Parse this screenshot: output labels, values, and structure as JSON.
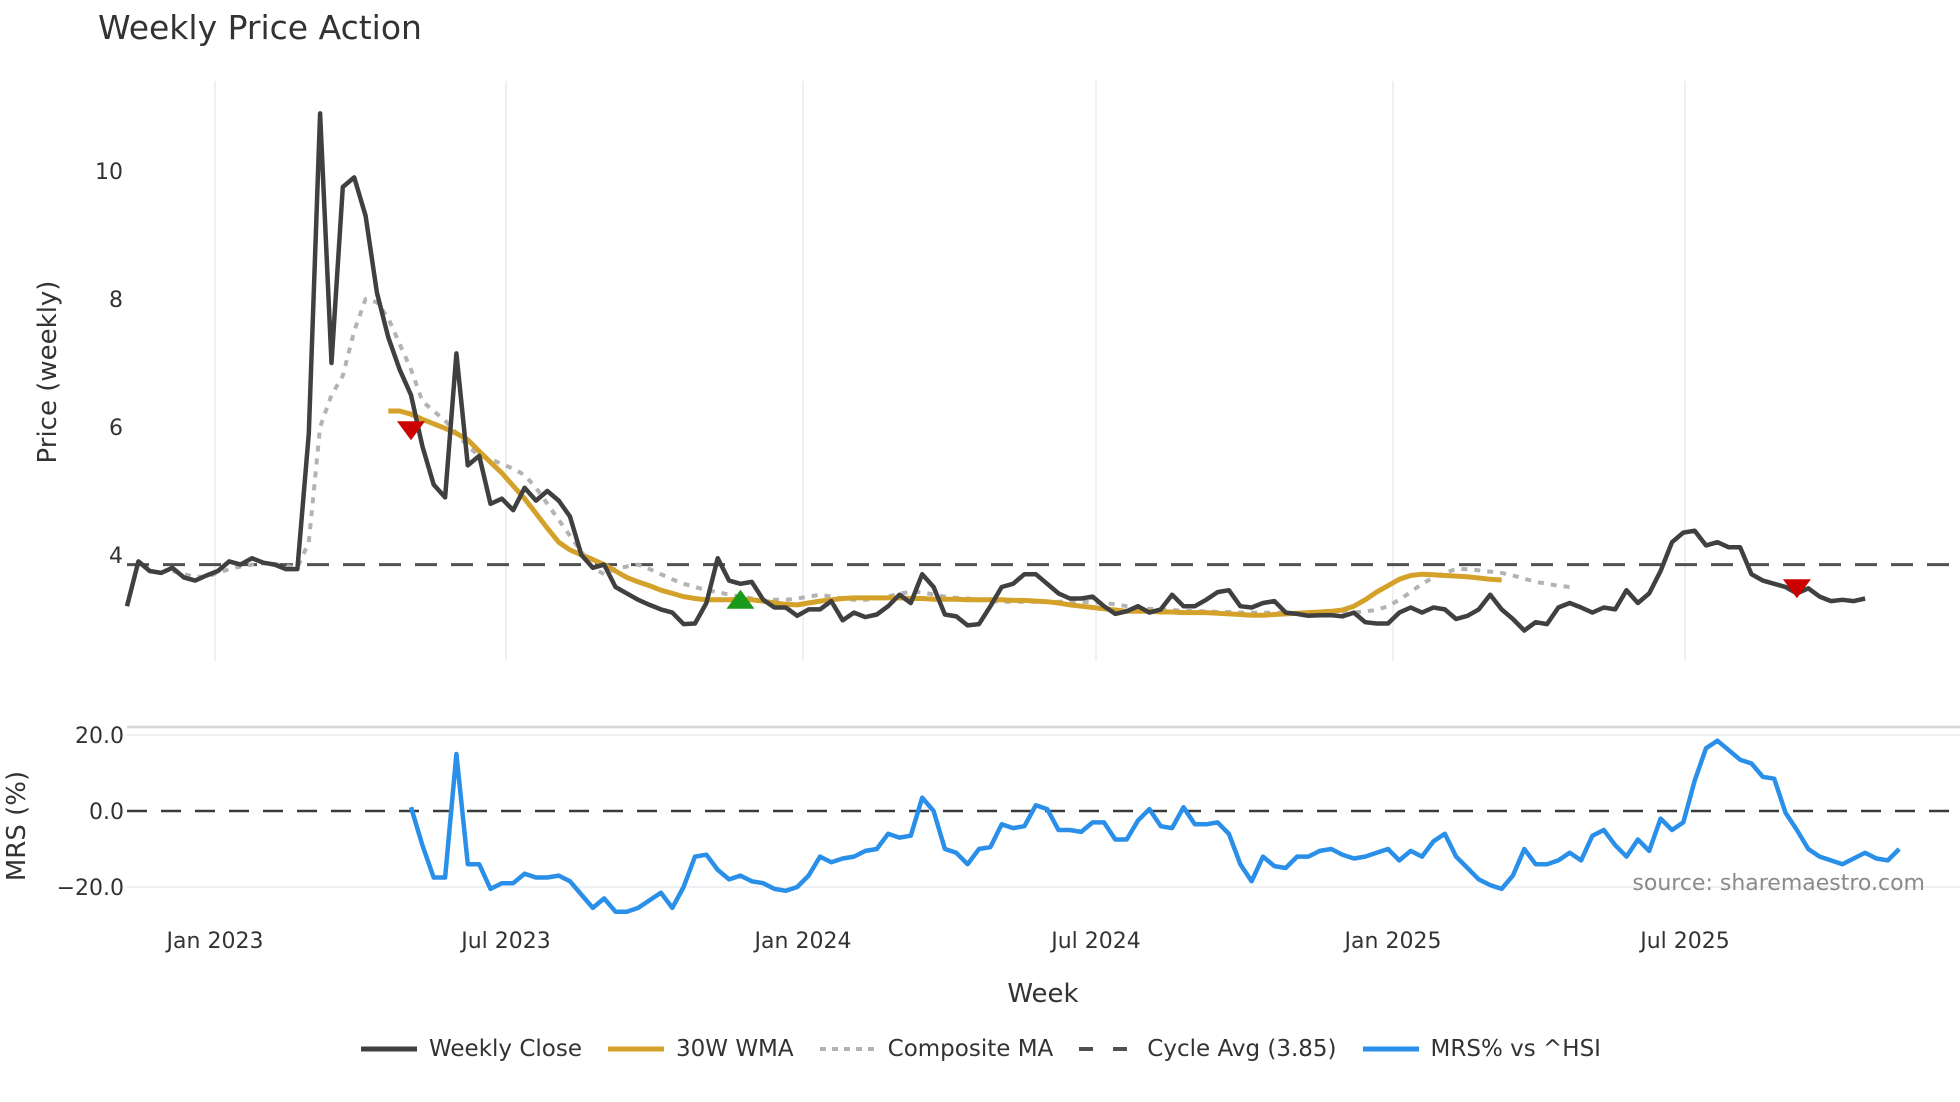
{
  "title": "Weekly Price Action",
  "source": "source: sharemaestro.com",
  "legend": [
    {
      "label": "Weekly Close",
      "color": "#404040",
      "style": "solid"
    },
    {
      "label": "30W WMA",
      "color": "#D4A22A",
      "style": "solid"
    },
    {
      "label": "Composite MA",
      "color": "#b3b3b3",
      "style": "dotted"
    },
    {
      "label": "Cycle Avg (3.85)",
      "color": "#505050",
      "style": "dashed"
    },
    {
      "label": "MRS% vs ^HSI",
      "color": "#2A8FE8",
      "style": "solid"
    }
  ],
  "chart_data": [
    {
      "type": "line",
      "title": "Weekly Price Action",
      "xlabel": "Week",
      "ylabel": "Price (weekly)",
      "x_tick_labels": [
        "Jan 2023",
        "Jul 2023",
        "Jan 2024",
        "Jul 2024",
        "Jan 2025",
        "Jul 2025"
      ],
      "y_ticks": [
        4,
        6,
        8,
        10
      ],
      "ylim": [
        2.1,
        11.3
      ],
      "grid": "vertical",
      "x_start": "2022-11-07",
      "x_step": "1 week",
      "cycle_avg": 3.85,
      "series": [
        {
          "name": "Weekly Close",
          "start_index": 0,
          "values": [
            3.2,
            3.9,
            3.75,
            3.72,
            3.8,
            3.65,
            3.6,
            3.68,
            3.75,
            3.9,
            3.85,
            3.95,
            3.88,
            3.85,
            3.78,
            3.78,
            5.9,
            10.9,
            7.0,
            9.75,
            9.9,
            9.3,
            8.1,
            7.4,
            6.9,
            6.5,
            5.7,
            5.1,
            4.9,
            7.15,
            5.4,
            5.55,
            4.8,
            4.88,
            4.7,
            5.05,
            4.85,
            5.0,
            4.85,
            4.6,
            4.0,
            3.8,
            3.85,
            3.5,
            3.4,
            3.3,
            3.22,
            3.15,
            3.1,
            2.92,
            2.93,
            3.25,
            3.95,
            3.6,
            3.55,
            3.58,
            3.3,
            3.18,
            3.18,
            3.05,
            3.15,
            3.15,
            3.28,
            2.98,
            3.1,
            3.03,
            3.07,
            3.2,
            3.38,
            3.25,
            3.7,
            3.5,
            3.07,
            3.04,
            2.9,
            2.92,
            3.2,
            3.5,
            3.55,
            3.7,
            3.7,
            3.55,
            3.4,
            3.32,
            3.32,
            3.35,
            3.2,
            3.08,
            3.12,
            3.2,
            3.1,
            3.15,
            3.38,
            3.2,
            3.2,
            3.3,
            3.42,
            3.45,
            3.2,
            3.18,
            3.25,
            3.28,
            3.1,
            3.08,
            3.05,
            3.06,
            3.06,
            3.04,
            3.1,
            2.95,
            2.93,
            2.93,
            3.1,
            3.18,
            3.1,
            3.18,
            3.15,
            3.0,
            3.05,
            3.15,
            3.38,
            3.15,
            3.0,
            2.82,
            2.95,
            2.92,
            3.18,
            3.25,
            3.18,
            3.1,
            3.18,
            3.15,
            3.45,
            3.25,
            3.4,
            3.75,
            4.2,
            4.35,
            4.38,
            4.15,
            4.2,
            4.12,
            4.12,
            3.7,
            3.6,
            3.55,
            3.5,
            3.4,
            3.48,
            3.35,
            3.28,
            3.3,
            3.28,
            3.32
          ]
        },
        {
          "name": "30W WMA",
          "start_index": 23,
          "values": [
            6.25,
            6.25,
            6.2,
            6.12,
            6.05,
            5.98,
            5.9,
            5.8,
            5.62,
            5.45,
            5.28,
            5.08,
            4.88,
            4.65,
            4.42,
            4.2,
            4.08,
            4.0,
            3.93,
            3.85,
            3.75,
            3.65,
            3.58,
            3.52,
            3.45,
            3.4,
            3.35,
            3.32,
            3.3,
            3.3,
            3.3,
            3.31,
            3.3,
            3.28,
            3.25,
            3.23,
            3.22,
            3.25,
            3.28,
            3.3,
            3.32,
            3.33,
            3.33,
            3.33,
            3.33,
            3.33,
            3.32,
            3.32,
            3.31,
            3.31,
            3.31,
            3.3,
            3.3,
            3.3,
            3.3,
            3.29,
            3.29,
            3.28,
            3.27,
            3.25,
            3.22,
            3.2,
            3.18,
            3.16,
            3.14,
            3.12,
            3.12,
            3.12,
            3.11,
            3.11,
            3.1,
            3.1,
            3.1,
            3.09,
            3.08,
            3.07,
            3.06,
            3.06,
            3.07,
            3.08,
            3.09,
            3.1,
            3.11,
            3.12,
            3.14,
            3.2,
            3.3,
            3.42,
            3.52,
            3.62,
            3.68,
            3.7,
            3.69,
            3.68,
            3.67,
            3.66,
            3.64,
            3.62,
            3.61
          ]
        },
        {
          "name": "Composite MA",
          "start_index": 4,
          "values": [
            3.75,
            3.7,
            3.66,
            3.66,
            3.72,
            3.78,
            3.82,
            3.85,
            3.87,
            3.86,
            3.83,
            3.8,
            4.2,
            6.0,
            6.5,
            6.8,
            7.5,
            8.0,
            7.95,
            7.7,
            7.3,
            6.9,
            6.4,
            6.25,
            6.1,
            5.9,
            5.7,
            5.55,
            5.5,
            5.42,
            5.35,
            5.25,
            5.05,
            4.8,
            4.55,
            4.3,
            4.05,
            3.8,
            3.7,
            3.78,
            3.82,
            3.85,
            3.78,
            3.7,
            3.62,
            3.55,
            3.5,
            3.45,
            3.42,
            3.38,
            3.35,
            3.32,
            3.3,
            3.3,
            3.3,
            3.32,
            3.35,
            3.38,
            3.35,
            3.32,
            3.3,
            3.3,
            3.32,
            3.35,
            3.4,
            3.42,
            3.42,
            3.38,
            3.35,
            3.33,
            3.32,
            3.3,
            3.28,
            3.27,
            3.27,
            3.27,
            3.27,
            3.27,
            3.27,
            3.27,
            3.27,
            3.26,
            3.25,
            3.23,
            3.2,
            3.18,
            3.16,
            3.15,
            3.14,
            3.13,
            3.12,
            3.12,
            3.11,
            3.11,
            3.1,
            3.1,
            3.1,
            3.1,
            3.09,
            3.08,
            3.07,
            3.07,
            3.07,
            3.08,
            3.1,
            3.12,
            3.14,
            3.2,
            3.3,
            3.42,
            3.55,
            3.65,
            3.72,
            3.78,
            3.78,
            3.76,
            3.74,
            3.72,
            3.68,
            3.63,
            3.58,
            3.55,
            3.52,
            3.5
          ]
        }
      ],
      "markers": [
        {
          "type": "sell",
          "shape": "triangle-down",
          "color": "#CC0000",
          "index": 25,
          "value": 5.95
        },
        {
          "type": "buy",
          "shape": "triangle-up",
          "color": "#1A9A1A",
          "index": 54,
          "value": 3.3
        },
        {
          "type": "sell",
          "shape": "triangle-down",
          "color": "#CC0000",
          "index": 147,
          "value": 3.48
        }
      ]
    },
    {
      "type": "line",
      "ylabel": "MRS (%)",
      "y_ticks": [
        20.0,
        0.0,
        -20.0
      ],
      "y_tick_labels": [
        "20.0",
        "0.0",
        "−20.0"
      ],
      "ylim": [
        -29,
        22
      ],
      "zero_line": 0.0,
      "series": [
        {
          "name": "MRS% vs ^HSI",
          "start_index": 25,
          "values": [
            1,
            -9,
            -17.5,
            -17.5,
            15,
            -14,
            -14,
            -20.5,
            -19,
            -19,
            -16.5,
            -17.5,
            -17.5,
            -17,
            -18.5,
            -22,
            -25.5,
            -23,
            -26.5,
            -26.5,
            -25.5,
            -23.5,
            -21.5,
            -25.5,
            -20,
            -12,
            -11.5,
            -15.5,
            -18,
            -17,
            -18.5,
            -19,
            -20.5,
            -21,
            -20,
            -17,
            -12,
            -13.5,
            -12.5,
            -12,
            -10.5,
            -10,
            -6,
            -7,
            -6.5,
            3.5,
            0,
            -10,
            -11,
            -14,
            -10,
            -9.5,
            -3.5,
            -4.5,
            -4,
            1.5,
            0.5,
            -5,
            -5,
            -5.5,
            -3,
            -3,
            -7.5,
            -7.5,
            -2.5,
            0.5,
            -4,
            -4.5,
            1,
            -3.5,
            -3.5,
            -3,
            -6,
            -14,
            -18.5,
            -12,
            -14.5,
            -15,
            -12,
            -12,
            -10.5,
            -10,
            -11.5,
            -12.5,
            -12,
            -11,
            -10,
            -13,
            -10.5,
            -12,
            -8,
            -6,
            -12,
            -15,
            -18,
            -19.5,
            -20.5,
            -17,
            -10,
            -14,
            -14,
            -13,
            -11,
            -13,
            -6.5,
            -5,
            -9,
            -12,
            -7.5,
            -10.5,
            -2,
            -5,
            -3,
            8,
            16.5,
            18.5,
            16,
            13.5,
            12.5,
            9,
            8.5,
            -0.5,
            -5,
            -10,
            -12,
            -13,
            -14,
            -12.5,
            -11,
            -12.5,
            -13,
            -10
          ]
        }
      ]
    }
  ]
}
